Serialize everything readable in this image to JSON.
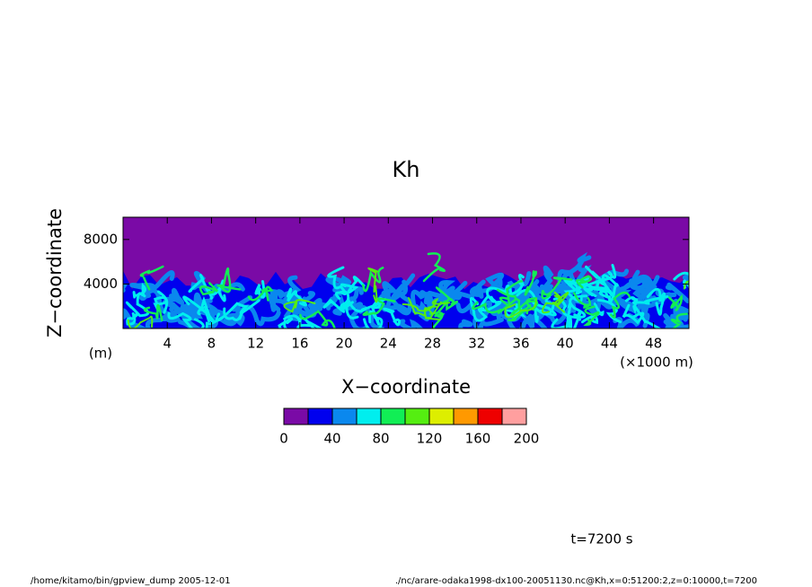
{
  "chart_data": {
    "type": "contour",
    "title": "Kh",
    "xlabel": "X−coordinate",
    "xunit": "(×1000 m)",
    "ylabel": "Z−coordinate",
    "yunit": "(m)",
    "xlim": [
      0,
      51.2
    ],
    "xticks": [
      4,
      8,
      12,
      16,
      20,
      24,
      28,
      32,
      36,
      40,
      44,
      48
    ],
    "ylim": [
      0,
      10000
    ],
    "yticks": [
      4000,
      8000
    ],
    "colorbar": {
      "levels": [
        0,
        20,
        40,
        60,
        80,
        100,
        120,
        140,
        160,
        180,
        200
      ],
      "colors": [
        "#7a0aa6",
        "#0000ee",
        "#0a88ee",
        "#00eeee",
        "#11ee55",
        "#55ee11",
        "#ddee00",
        "#ff9900",
        "#ee0000",
        "#ff9f9f"
      ],
      "ticks": [
        0,
        40,
        80,
        120,
        160,
        200
      ]
    },
    "annotation": "t=7200 s"
  },
  "footer": {
    "left": "/home/kitamo/bin/gpview_dump  2005-12-01",
    "right": "./nc/arare-odaka1998-dx100-20051130.nc@Kh,x=0:51200:2,z=0:10000,t=7200"
  }
}
